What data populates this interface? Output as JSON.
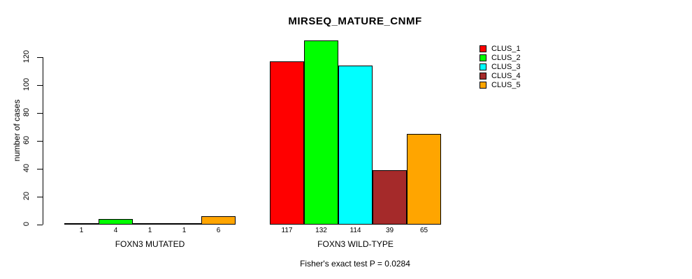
{
  "chart_data": {
    "type": "bar",
    "title": "MIRSEQ_MATURE_CNMF",
    "xlabel": "",
    "ylabel": "number of cases",
    "ylim": [
      0,
      120
    ],
    "yticks": [
      0,
      20,
      40,
      60,
      80,
      100,
      120
    ],
    "grid": false,
    "legend_position": "right-outside",
    "categories": [
      "FOXN3 MUTATED",
      "FOXN3 WILD-TYPE"
    ],
    "series": [
      {
        "name": "CLUS_1",
        "color": "#FF0000",
        "values": [
          1,
          117
        ]
      },
      {
        "name": "CLUS_2",
        "color": "#00FF00",
        "values": [
          4,
          132
        ]
      },
      {
        "name": "CLUS_3",
        "color": "#00FFFF",
        "values": [
          1,
          114
        ]
      },
      {
        "name": "CLUS_4",
        "color": "#A52A2A",
        "values": [
          1,
          39
        ]
      },
      {
        "name": "CLUS_5",
        "color": "#FFA500",
        "values": [
          6,
          65
        ]
      }
    ],
    "bar_value_labels": [
      [
        "1",
        "4",
        "1",
        "1",
        "6"
      ],
      [
        "117",
        "132",
        "114",
        "39",
        "65"
      ]
    ],
    "annotation": "Fisher's exact test P = 0.0284",
    "colors": {
      "bar_border": "#000000",
      "axis": "#000000",
      "text": "#000000",
      "background": "#FFFFFF"
    }
  }
}
